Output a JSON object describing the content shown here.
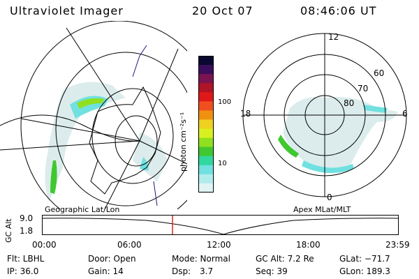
{
  "header": {
    "title": "Ultraviolet Imager",
    "date": "20 Oct 07",
    "time": "08:46:06 UT"
  },
  "left_map": {
    "label": "Geographic Lat/Lon"
  },
  "right_map": {
    "label": "Apex MLat/MLT",
    "mlt_labels": [
      "12",
      "18",
      "6",
      "0"
    ],
    "lat_labels": [
      "60",
      "70",
      "80"
    ]
  },
  "colorbar": {
    "unit_label": "photon cm⁻²s⁻¹",
    "ticks": [
      "100",
      "10"
    ],
    "colors": [
      "#0a0830",
      "#3a0e5c",
      "#7a1450",
      "#b01428",
      "#e01818",
      "#f05020",
      "#f09010",
      "#f0d020",
      "#d8f020",
      "#90e020",
      "#40c830",
      "#30d8a0",
      "#70e0e0",
      "#b0ecec",
      "#e0f4f4"
    ]
  },
  "altitude_strip": {
    "ylabel": "GC Alt",
    "ymax_label": "9.0",
    "ymin_label": "1.8",
    "time_ticks": [
      "00:00",
      "06:00",
      "12:00",
      "18:00",
      "23:59"
    ],
    "current_fraction": 0.366
  },
  "footer": {
    "col1": {
      "r1": "Flt: LBHL",
      "r2": "IP: 36.0"
    },
    "col2": {
      "r1": "Door: Open",
      "r2": "Gain: 14"
    },
    "col3": {
      "r1": "Mode: Normal",
      "r2_label": "Dsp:",
      "r2_value": "3.7"
    },
    "col4": {
      "r1": "GC Alt: 7.2 Re",
      "r2": "Seq: 39"
    },
    "col5": {
      "r1": "GLat: −71.7",
      "r2": "GLon: 189.3"
    }
  }
}
